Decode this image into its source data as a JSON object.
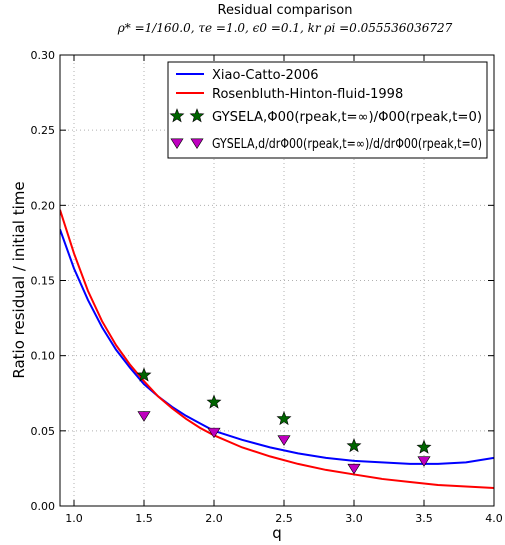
{
  "chart_data": {
    "type": "line",
    "title": "Residual comparison",
    "subtitle": "ρ* =1/160.0, τe =1.0, ϵ0 =0.1, kr ρi =0.055536036727",
    "xlabel": "q",
    "ylabel": "Ratio residual / initial time",
    "xlim": [
      0.9,
      4.0
    ],
    "ylim": [
      0.0,
      0.3
    ],
    "x_ticks": [
      "1.0",
      "1.5",
      "2.0",
      "2.5",
      "3.0",
      "3.5",
      "4.0"
    ],
    "y_ticks": [
      "0.00",
      "0.05",
      "0.10",
      "0.15",
      "0.20",
      "0.25",
      "0.30"
    ],
    "grid": true,
    "legend_position": "top-right",
    "series": [
      {
        "name": "Xiao-Catto-2006",
        "kind": "line",
        "color": "#0000ff",
        "x": [
          0.9,
          1.0,
          1.1,
          1.2,
          1.3,
          1.4,
          1.5,
          1.6,
          1.7,
          1.8,
          1.9,
          2.0,
          2.2,
          2.4,
          2.6,
          2.8,
          3.0,
          3.2,
          3.4,
          3.6,
          3.8,
          4.0
        ],
        "y": [
          0.184,
          0.158,
          0.137,
          0.119,
          0.104,
          0.092,
          0.081,
          0.073,
          0.066,
          0.06,
          0.055,
          0.05,
          0.044,
          0.039,
          0.035,
          0.032,
          0.03,
          0.029,
          0.028,
          0.028,
          0.029,
          0.032
        ]
      },
      {
        "name": "Rosenbluth-Hinton-fluid-1998",
        "kind": "line",
        "color": "#ff0000",
        "x": [
          0.9,
          1.0,
          1.1,
          1.2,
          1.3,
          1.4,
          1.5,
          1.6,
          1.7,
          1.8,
          1.9,
          2.0,
          2.2,
          2.4,
          2.6,
          2.8,
          3.0,
          3.2,
          3.4,
          3.6,
          3.8,
          4.0
        ],
        "y": [
          0.197,
          0.168,
          0.143,
          0.123,
          0.107,
          0.094,
          0.083,
          0.073,
          0.065,
          0.058,
          0.052,
          0.047,
          0.039,
          0.033,
          0.028,
          0.024,
          0.021,
          0.018,
          0.016,
          0.014,
          0.013,
          0.012
        ]
      },
      {
        "name": "GYSELA,Φ00(rpeak,t=∞)/Φ00(rpeak,t=0)",
        "kind": "scatter",
        "marker": "star",
        "color": "#006400",
        "x": [
          1.5,
          2.0,
          2.5,
          3.0,
          3.5
        ],
        "y": [
          0.087,
          0.069,
          0.058,
          0.04,
          0.039
        ]
      },
      {
        "name": "GYSELA,d/drΦ00(rpeak,t=∞)/d/drΦ00(rpeak,t=0)",
        "kind": "scatter",
        "marker": "triangle-down",
        "color": "#bf00bf",
        "x": [
          1.5,
          2.0,
          2.5,
          3.0,
          3.5
        ],
        "y": [
          0.06,
          0.049,
          0.044,
          0.025,
          0.03
        ]
      }
    ]
  }
}
